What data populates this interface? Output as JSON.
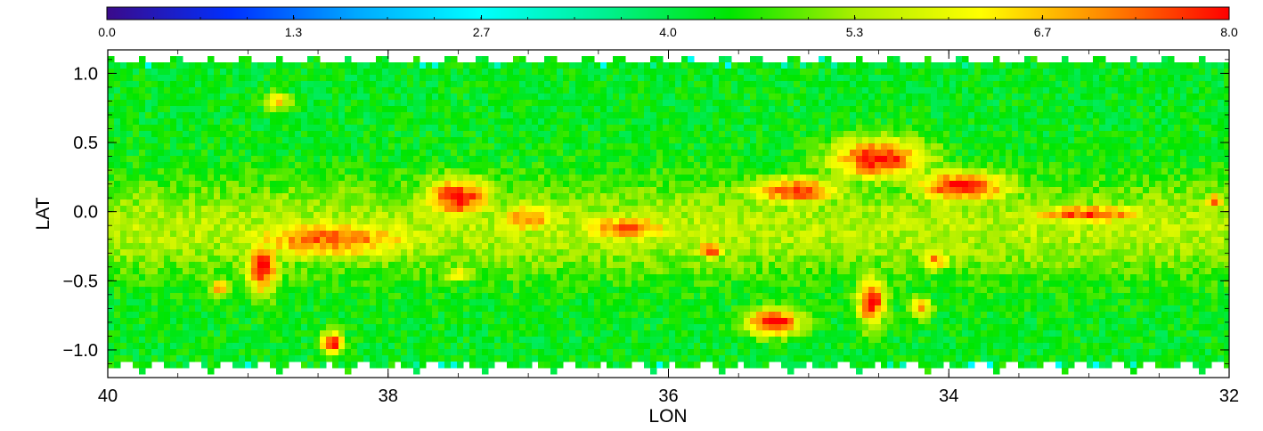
{
  "chart_data": {
    "type": "heatmap",
    "title": "",
    "xlabel": "LON",
    "ylabel": "LAT",
    "xlim": [
      40,
      32
    ],
    "ylim": [
      -1.2,
      1.17
    ],
    "x_ticks": [
      40,
      38,
      36,
      34,
      32
    ],
    "x_tick_labels": [
      "40",
      "38",
      "36",
      "34",
      "32"
    ],
    "y_ticks": [
      1.0,
      0.5,
      0.0,
      -0.5,
      -1.0
    ],
    "y_tick_labels": [
      "1.0",
      "0.5",
      "0.0",
      "−0.5",
      "−1.0"
    ],
    "colorbar": {
      "min": 0.0,
      "max": 8.0,
      "ticks": [
        0.0,
        1.33,
        2.67,
        4.0,
        5.33,
        6.67,
        8.0
      ],
      "tick_labels": [
        "0.0",
        "1.3",
        "2.7",
        "4.0",
        "5.3",
        "6.7",
        "8.0"
      ],
      "colormap": "rainbow",
      "colors": [
        "#3a0a8a",
        "#0030ff",
        "#00a8ff",
        "#00ffff",
        "#00f090",
        "#00e600",
        "#aaee00",
        "#ffff00",
        "#ff8800",
        "#ff0000"
      ]
    },
    "background_value": 4.3,
    "features": [
      {
        "lon": 37.5,
        "lat": 0.1,
        "value": 7.8,
        "lon_width": 0.25,
        "lat_width": 0.15
      },
      {
        "lon": 37.0,
        "lat": -0.05,
        "value": 6.9,
        "lon_width": 0.25,
        "lat_width": 0.12
      },
      {
        "lon": 38.4,
        "lat": -0.2,
        "value": 7.2,
        "lon_width": 0.7,
        "lat_width": 0.15
      },
      {
        "lon": 38.9,
        "lat": -0.4,
        "value": 7.9,
        "lon_width": 0.12,
        "lat_width": 0.2
      },
      {
        "lon": 36.3,
        "lat": -0.12,
        "value": 7.3,
        "lon_width": 0.35,
        "lat_width": 0.1
      },
      {
        "lon": 38.4,
        "lat": -0.95,
        "value": 7.9,
        "lon_width": 0.08,
        "lat_width": 0.08
      },
      {
        "lon": 34.5,
        "lat": 0.38,
        "value": 7.8,
        "lon_width": 0.35,
        "lat_width": 0.15
      },
      {
        "lon": 35.1,
        "lat": 0.15,
        "value": 7.6,
        "lon_width": 0.35,
        "lat_width": 0.1
      },
      {
        "lon": 33.9,
        "lat": 0.18,
        "value": 7.8,
        "lon_width": 0.35,
        "lat_width": 0.12
      },
      {
        "lon": 33.0,
        "lat": -0.02,
        "value": 7.5,
        "lon_width": 0.45,
        "lat_width": 0.07
      },
      {
        "lon": 35.25,
        "lat": -0.8,
        "value": 8.0,
        "lon_width": 0.2,
        "lat_width": 0.1
      },
      {
        "lon": 34.55,
        "lat": -0.65,
        "value": 7.9,
        "lon_width": 0.1,
        "lat_width": 0.18
      },
      {
        "lon": 35.7,
        "lat": -0.28,
        "value": 7.6,
        "lon_width": 0.1,
        "lat_width": 0.06
      },
      {
        "lon": 34.1,
        "lat": -0.35,
        "value": 6.9,
        "lon_width": 0.12,
        "lat_width": 0.08
      },
      {
        "lon": 32.1,
        "lat": 0.08,
        "value": 7.8,
        "lon_width": 0.06,
        "lat_width": 0.05
      },
      {
        "lon": 39.2,
        "lat": -0.55,
        "value": 7.0,
        "lon_width": 0.08,
        "lat_width": 0.06
      },
      {
        "lon": 38.8,
        "lat": 0.8,
        "value": 6.5,
        "lon_width": 0.1,
        "lat_width": 0.06
      },
      {
        "lon": 37.5,
        "lat": -0.45,
        "value": 6.4,
        "lon_width": 0.1,
        "lat_width": 0.06
      },
      {
        "lon": 34.2,
        "lat": -0.7,
        "value": 6.8,
        "lon_width": 0.08,
        "lat_width": 0.08
      }
    ]
  }
}
